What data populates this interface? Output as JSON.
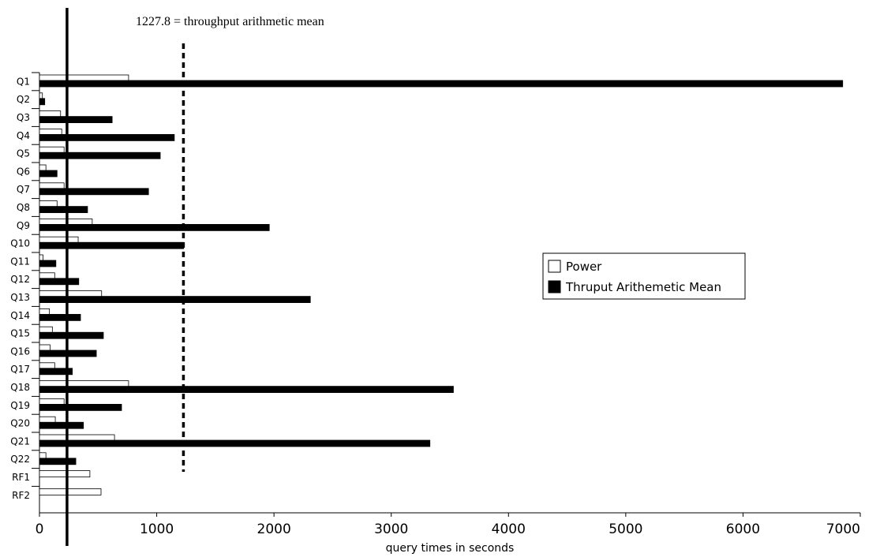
{
  "chart_data": {
    "type": "bar",
    "orientation": "horizontal",
    "categories": [
      "Q1",
      "Q2",
      "Q3",
      "Q4",
      "Q5",
      "Q6",
      "Q7",
      "Q8",
      "Q9",
      "Q10",
      "Q11",
      "Q12",
      "Q13",
      "Q14",
      "Q15",
      "Q16",
      "Q17",
      "Q18",
      "Q19",
      "Q20",
      "Q21",
      "Q22",
      "RF1",
      "RF2"
    ],
    "series": [
      {
        "name": "Power",
        "color": "#ffffff",
        "values": [
          760,
          25,
          180,
          190,
          210,
          55,
          210,
          150,
          450,
          330,
          30,
          130,
          530,
          85,
          110,
          90,
          130,
          760,
          210,
          135,
          640,
          55,
          430,
          525
        ]
      },
      {
        "name": "Thruput Arithemetic Mean",
        "color": "#000000",
        "values": [
          6850,
          45,
          620,
          1150,
          1030,
          150,
          930,
          410,
          1960,
          1230,
          140,
          335,
          2310,
          350,
          545,
          485,
          280,
          3530,
          700,
          375,
          3330,
          310,
          null,
          null
        ]
      }
    ],
    "xlabel": "query times in seconds",
    "xlim": [
      0,
      7000
    ],
    "xticks": [
      "0",
      "1000",
      "2000",
      "3000",
      "4000",
      "5000",
      "6000",
      "7000"
    ],
    "reference_lines": [
      {
        "value": 1227.8,
        "style": "dashed"
      },
      {
        "value": 235,
        "style": "solid"
      }
    ],
    "annotation": "1227.8  = throughput arithmetic mean",
    "legend_position": "right"
  }
}
